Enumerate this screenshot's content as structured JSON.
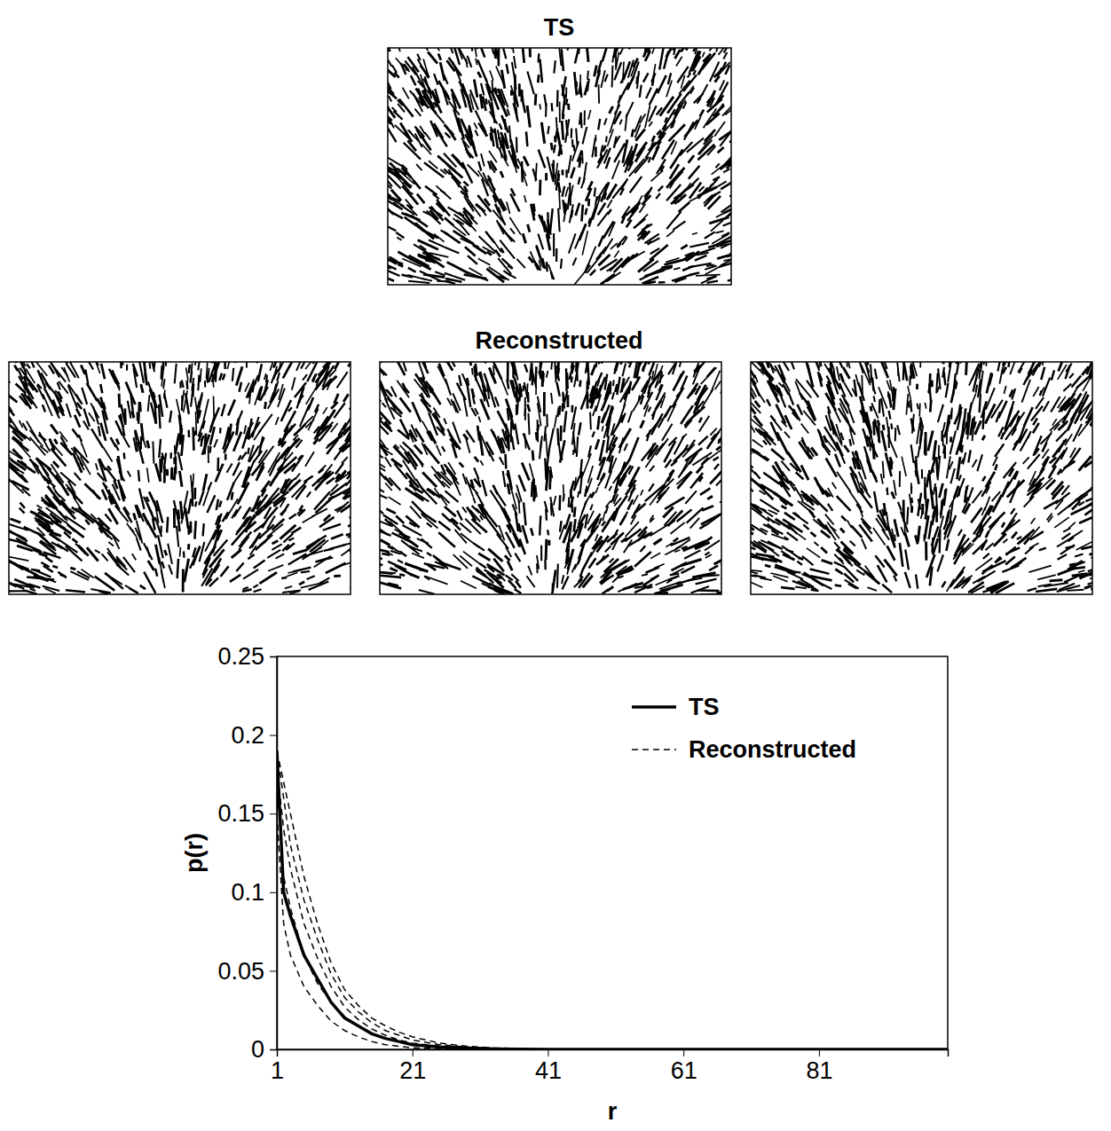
{
  "figure": {
    "top_title": "TS",
    "middle_title": "Reconstructed"
  },
  "chart_data": {
    "type": "line",
    "x_label": "r",
    "y_label": "p(r)",
    "x": [
      1,
      2,
      3,
      5,
      7,
      9,
      11,
      13,
      15,
      17,
      19,
      21,
      25,
      29,
      33,
      41,
      61,
      81,
      100
    ],
    "xlim": [
      1,
      100
    ],
    "xticks": [
      1,
      21,
      41,
      61,
      81
    ],
    "ylim": [
      0,
      0.25
    ],
    "yticks": [
      0,
      0.05,
      0.1,
      0.15,
      0.2,
      0.25
    ],
    "legend": "upper right",
    "series": [
      {
        "name": "TS",
        "color": "#000000",
        "line_style": "solid",
        "values": [
          0.19,
          0.1,
          0.085,
          0.06,
          0.045,
          0.03,
          0.02,
          0.015,
          0.01,
          0.007,
          0.005,
          0.003,
          0.0015,
          0.0008,
          0.0003,
          0,
          0,
          0,
          0
        ]
      },
      {
        "name": "Reconstructed",
        "color": "#000000",
        "line_style": "dashed",
        "values": [
          0.19,
          0.17,
          0.15,
          0.11,
          0.08,
          0.055,
          0.038,
          0.028,
          0.02,
          0.015,
          0.011,
          0.008,
          0.004,
          0.002,
          0.001,
          0,
          0,
          0,
          0
        ]
      },
      {
        "name": "Reconstructed",
        "color": "#000000",
        "line_style": "dashed",
        "values": [
          0.19,
          0.16,
          0.13,
          0.095,
          0.07,
          0.048,
          0.033,
          0.024,
          0.017,
          0.012,
          0.009,
          0.006,
          0.003,
          0.0015,
          0.0007,
          0,
          0,
          0,
          0
        ]
      },
      {
        "name": "Reconstructed",
        "color": "#000000",
        "line_style": "dashed",
        "values": [
          0.18,
          0.14,
          0.115,
          0.08,
          0.058,
          0.04,
          0.027,
          0.019,
          0.013,
          0.009,
          0.006,
          0.004,
          0.002,
          0.001,
          0.0004,
          0,
          0,
          0,
          0
        ]
      },
      {
        "name": "Reconstructed",
        "color": "#000000",
        "line_style": "dashed",
        "values": [
          0.17,
          0.11,
          0.09,
          0.06,
          0.042,
          0.03,
          0.021,
          0.015,
          0.01,
          0.007,
          0.005,
          0.003,
          0.0015,
          0.0006,
          0.0002,
          0,
          0,
          0,
          0
        ]
      },
      {
        "name": "Reconstructed",
        "color": "#000000",
        "line_style": "dashed",
        "values": [
          0.15,
          0.08,
          0.06,
          0.04,
          0.028,
          0.018,
          0.012,
          0.008,
          0.005,
          0.003,
          0.002,
          0.001,
          0.0005,
          0.0002,
          0,
          0,
          0,
          0,
          0
        ]
      }
    ]
  }
}
